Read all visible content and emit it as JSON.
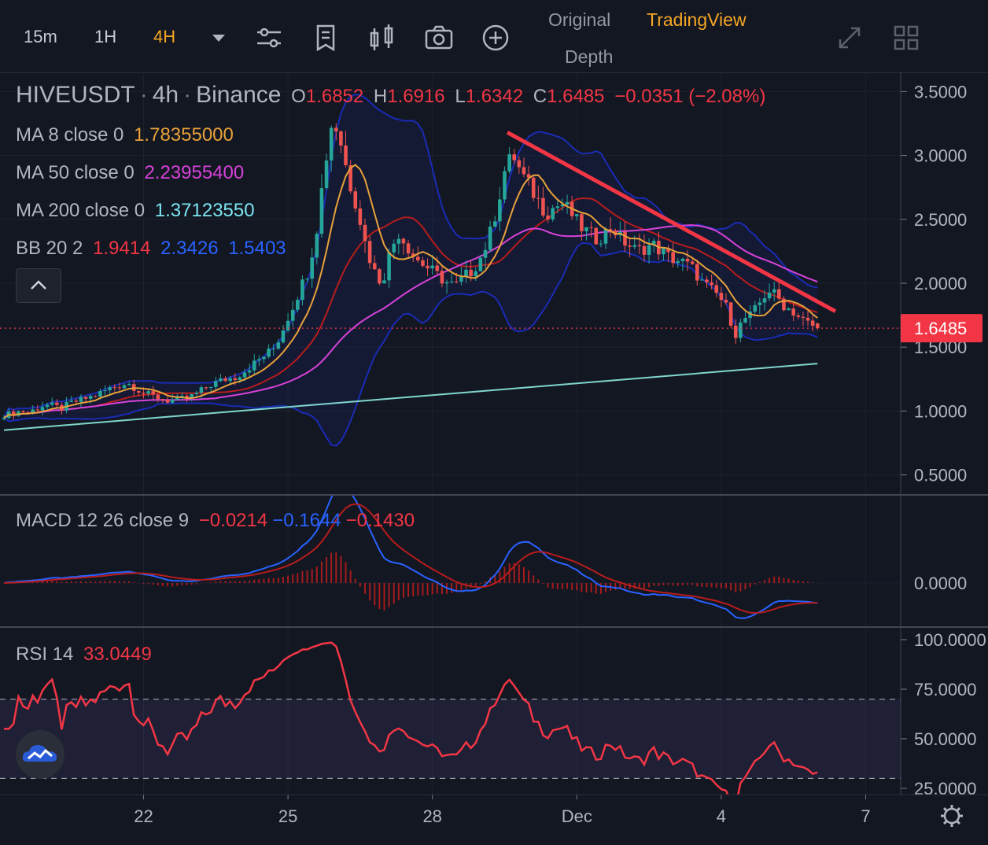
{
  "toolbar": {
    "timeframes": [
      "15m",
      "1H",
      "4H"
    ],
    "active_timeframe": "4H",
    "modes": {
      "original": "Original",
      "tradingview": "TradingView",
      "depth": "Depth"
    }
  },
  "legend": {
    "symbol": "HIVEUSDT",
    "interval": "4h",
    "exchange": "Binance",
    "ohlc": {
      "o_label": "O",
      "o": "1.6852",
      "h_label": "H",
      "h": "1.6916",
      "l_label": "L",
      "l": "1.6342",
      "c_label": "C",
      "c": "1.6485",
      "change": "−0.0351 (−2.08%)"
    },
    "ma8": {
      "label": "MA 8 close 0",
      "value": "1.78355000"
    },
    "ma50": {
      "label": "MA 50 close 0",
      "value": "2.23955400"
    },
    "ma200": {
      "label": "MA 200 close 0",
      "value": "1.37123550"
    },
    "bb": {
      "label": "BB 20 2",
      "mid": "1.9414",
      "upper": "2.3426",
      "lower": "1.5403"
    },
    "macd": {
      "label": "MACD 12 26 close 9",
      "hist": "−0.0214",
      "macd": "−0.1644",
      "signal": "−0.1430"
    },
    "rsi": {
      "label": "RSI 14",
      "value": "33.0449"
    }
  },
  "colors": {
    "bg": "#131722",
    "up": "#26a69a",
    "down": "#ef5350",
    "ma8": "#e8a13a",
    "ma50": "#d642d9",
    "ma200": "#7fd6cc",
    "bb_band": "#1e2a8c",
    "bb_mid": "#b71c1c",
    "trendline": "#f23645",
    "macd": "#2962ff",
    "signal": "#b71c1c",
    "rsi": "#f23645",
    "price_tag": "#f23645"
  },
  "chart_data": [
    {
      "type": "candlestick",
      "title": "HIVEUSDT · 4h · Binance",
      "y_ticks": [
        "3.5000",
        "3.0000",
        "2.5000",
        "2.0000",
        "1.5000",
        "1.0000",
        "0.5000"
      ],
      "ylim": [
        0.35,
        3.65
      ],
      "x_ticks": [
        "22",
        "25",
        "28",
        "Dec",
        "4",
        "7"
      ],
      "current_price": "1.6485",
      "close_series": [
        0.97,
        0.98,
        1.0,
        0.99,
        1.02,
        1.05,
        1.04,
        1.02,
        1.06,
        1.08,
        1.1,
        1.12,
        1.15,
        1.18,
        1.2,
        1.22,
        1.18,
        1.14,
        1.12,
        1.1,
        1.08,
        1.09,
        1.1,
        1.12,
        1.16,
        1.2,
        1.23,
        1.25,
        1.26,
        1.3,
        1.35,
        1.4,
        1.45,
        1.5,
        1.65,
        1.8,
        1.95,
        2.1,
        2.4,
        2.9,
        3.3,
        3.1,
        2.8,
        2.6,
        2.3,
        2.1,
        2.0,
        2.25,
        2.4,
        2.3,
        2.2,
        2.15,
        2.1,
        2.05,
        2.0,
        1.98,
        2.05,
        2.1,
        2.2,
        2.35,
        2.6,
        2.9,
        3.0,
        2.85,
        2.75,
        2.65,
        2.55,
        2.6,
        2.62,
        2.55,
        2.45,
        2.4,
        2.35,
        2.38,
        2.45,
        2.35,
        2.3,
        2.25,
        2.28,
        2.3,
        2.25,
        2.2,
        2.18,
        2.15,
        2.1,
        2.0,
        1.95,
        1.9,
        1.8,
        1.6,
        1.72,
        1.75,
        1.85,
        1.95,
        1.9,
        1.82,
        1.78,
        1.72,
        1.68,
        1.65
      ],
      "ma8": [
        1.78355
      ],
      "ma50": [
        2.239554
      ],
      "ma200": [
        1.3712355
      ],
      "bollinger": {
        "period": 20,
        "mult": 2,
        "mid": 1.9414,
        "upper": 2.3426,
        "lower": 1.5403
      },
      "trendline": {
        "from_price": 3.18,
        "to_price": 1.78,
        "label": ""
      },
      "candles_summary": {
        "open": 1.6852,
        "high": 1.6916,
        "low": 1.6342,
        "close": 1.6485
      }
    },
    {
      "type": "line",
      "title": "MACD 12 26 close 9",
      "y_ticks": [
        "0.0000"
      ],
      "series": [
        {
          "name": "MACD",
          "last": -0.1644
        },
        {
          "name": "Signal",
          "last": -0.143
        },
        {
          "name": "Histogram",
          "last": -0.0214
        }
      ]
    },
    {
      "type": "line",
      "title": "RSI 14",
      "y_ticks": [
        "100.0000",
        "75.0000",
        "50.0000",
        "25.0000"
      ],
      "ylim": [
        0,
        100
      ],
      "bands": [
        70,
        30
      ],
      "last": 33.0449
    }
  ]
}
